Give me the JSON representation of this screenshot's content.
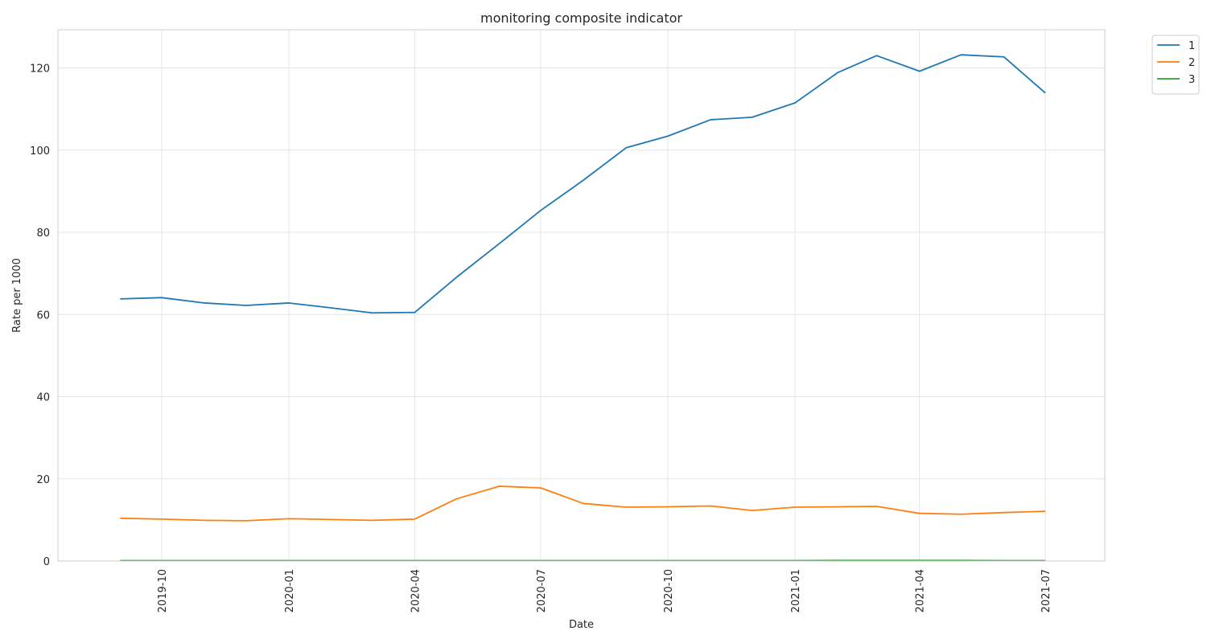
{
  "chart_data": {
    "type": "line",
    "title": "monitoring composite indicator",
    "xlabel": "Date",
    "ylabel": "Rate per 1000",
    "x": [
      "2019-09-01",
      "2019-10-01",
      "2019-11-01",
      "2019-12-01",
      "2020-01-01",
      "2020-02-01",
      "2020-03-01",
      "2020-04-01",
      "2020-05-01",
      "2020-06-01",
      "2020-07-01",
      "2020-08-01",
      "2020-09-01",
      "2020-10-01",
      "2020-11-01",
      "2020-12-01",
      "2021-01-01",
      "2021-02-01",
      "2021-03-01",
      "2021-04-01",
      "2021-05-01",
      "2021-06-01",
      "2021-07-01"
    ],
    "series": [
      {
        "name": "1",
        "color": "#1f77b4",
        "values": [
          63.8,
          64.1,
          62.8,
          62.2,
          62.8,
          61.6,
          60.4,
          60.5,
          69.0,
          77.2,
          85.3,
          92.7,
          100.6,
          103.4,
          107.4,
          108.0,
          111.5,
          118.9,
          123.0,
          119.2,
          123.2,
          122.7,
          113.9
        ]
      },
      {
        "name": "2",
        "color": "#ff7f0e",
        "values": [
          10.4,
          10.2,
          9.9,
          9.8,
          10.3,
          10.1,
          9.9,
          10.2,
          15.1,
          18.2,
          17.8,
          14.0,
          13.1,
          13.2,
          13.4,
          12.3,
          13.1,
          13.2,
          13.3,
          11.6,
          11.4,
          11.8,
          12.1
        ]
      },
      {
        "name": "3",
        "color": "#2ca02c",
        "values": [
          0.1,
          0.1,
          0.1,
          0.1,
          0.1,
          0.1,
          0.1,
          0.1,
          0.1,
          0.1,
          0.1,
          0.1,
          0.1,
          0.1,
          0.1,
          0.1,
          0.1,
          0.15,
          0.15,
          0.15,
          0.15,
          0.1,
          0.1
        ]
      }
    ],
    "xticks": [
      "2019-10",
      "2020-01",
      "2020-04",
      "2020-07",
      "2020-10",
      "2021-01",
      "2021-04",
      "2021-07"
    ],
    "yticks": [
      0,
      20,
      40,
      60,
      80,
      100,
      120
    ],
    "ylim": [
      0,
      129.3
    ],
    "xlim": [
      "2019-07-18",
      "2021-08-13"
    ],
    "grid": true,
    "legend_position": "top-right-outside"
  }
}
